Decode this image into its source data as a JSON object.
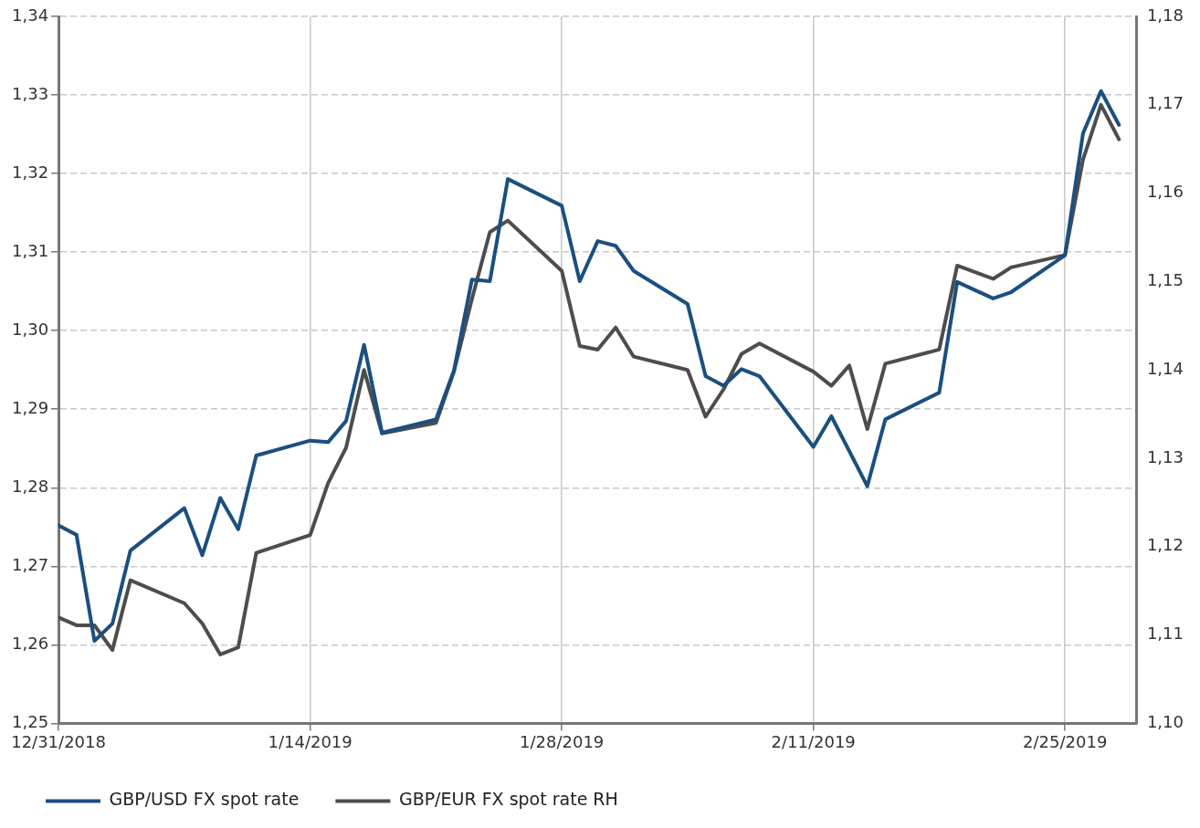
{
  "chart_data": {
    "type": "line",
    "xlim": [
      "2018-12-31",
      "2019-03-01"
    ],
    "xticks": [
      {
        "value": "2018-12-31",
        "label": "12/31/2018"
      },
      {
        "value": "2019-01-14",
        "label": "1/14/2019"
      },
      {
        "value": "2019-01-28",
        "label": "1/28/2019"
      },
      {
        "value": "2019-02-11",
        "label": "2/11/2019"
      },
      {
        "value": "2019-02-25",
        "label": "2/25/2019"
      }
    ],
    "ylim": [
      1.25,
      1.34
    ],
    "yticks": [
      {
        "value": 1.25,
        "label": "1,25"
      },
      {
        "value": 1.26,
        "label": "1,26"
      },
      {
        "value": 1.27,
        "label": "1,27"
      },
      {
        "value": 1.28,
        "label": "1,28"
      },
      {
        "value": 1.29,
        "label": "1,29"
      },
      {
        "value": 1.3,
        "label": "1,30"
      },
      {
        "value": 1.31,
        "label": "1,31"
      },
      {
        "value": 1.32,
        "label": "1,32"
      },
      {
        "value": 1.33,
        "label": "1,33"
      },
      {
        "value": 1.34,
        "label": "1,34"
      }
    ],
    "y2lim": [
      1.1,
      1.18
    ],
    "y2ticks": [
      {
        "value": 1.1,
        "label": "1,10"
      },
      {
        "value": 1.11,
        "label": "1,11"
      },
      {
        "value": 1.12,
        "label": "1,12"
      },
      {
        "value": 1.13,
        "label": "1,13"
      },
      {
        "value": 1.14,
        "label": "1,14"
      },
      {
        "value": 1.15,
        "label": "1,15"
      },
      {
        "value": 1.16,
        "label": "1,16"
      },
      {
        "value": 1.17,
        "label": "1,17"
      },
      {
        "value": 1.18,
        "label": "1,18"
      }
    ],
    "grid": true,
    "legend": "bottom",
    "marker": "none",
    "line_style": "solid",
    "series": [
      {
        "name": "GBP/USD FX spot rate",
        "color": "#1b4f80",
        "x": [
          "2018-12-31",
          "2019-01-01",
          "2019-01-02",
          "2019-01-03",
          "2019-01-04",
          "2019-01-07",
          "2019-01-08",
          "2019-01-09",
          "2019-01-10",
          "2019-01-11",
          "2019-01-14",
          "2019-01-15",
          "2019-01-16",
          "2019-01-17",
          "2019-01-18",
          "2019-01-21",
          "2019-01-22",
          "2019-01-23",
          "2019-01-24",
          "2019-01-25",
          "2019-01-28",
          "2019-01-29",
          "2019-01-30",
          "2019-01-31",
          "2019-02-01",
          "2019-02-04",
          "2019-02-05",
          "2019-02-06",
          "2019-02-07",
          "2019-02-08",
          "2019-02-11",
          "2019-02-12",
          "2019-02-14",
          "2019-02-15",
          "2019-02-18",
          "2019-02-19",
          "2019-02-21",
          "2019-02-22",
          "2019-02-25",
          "2019-02-26",
          "2019-02-27",
          "2019-02-28"
        ],
        "values": [
          1.2752,
          1.274,
          1.2605,
          1.2627,
          1.272,
          1.2774,
          1.2714,
          1.2787,
          1.2747,
          1.2841,
          1.286,
          1.2858,
          1.2885,
          1.2982,
          1.287,
          1.2887,
          1.2949,
          1.3065,
          1.3063,
          1.3193,
          1.3159,
          1.3063,
          1.3114,
          1.3108,
          1.3076,
          1.3034,
          1.2942,
          1.293,
          1.2951,
          1.2942,
          1.2852,
          1.2891,
          1.2802,
          1.2887,
          1.2921,
          1.3062,
          1.3041,
          1.3049,
          1.3096,
          1.3251,
          1.3305,
          1.3262
        ]
      },
      {
        "name": "GBP/EUR FX spot rate RH",
        "color": "#4d4d4d",
        "axis": "y2",
        "x": [
          "2018-12-31",
          "2019-01-01",
          "2019-01-02",
          "2019-01-03",
          "2019-01-04",
          "2019-01-07",
          "2019-01-08",
          "2019-01-09",
          "2019-01-10",
          "2019-01-11",
          "2019-01-14",
          "2019-01-15",
          "2019-01-16",
          "2019-01-17",
          "2019-01-18",
          "2019-01-21",
          "2019-01-22",
          "2019-01-23",
          "2019-01-24",
          "2019-01-25",
          "2019-01-28",
          "2019-01-29",
          "2019-01-30",
          "2019-01-31",
          "2019-02-01",
          "2019-02-04",
          "2019-02-05",
          "2019-02-06",
          "2019-02-07",
          "2019-02-08",
          "2019-02-11",
          "2019-02-12",
          "2019-02-13",
          "2019-02-14",
          "2019-02-15",
          "2019-02-18",
          "2019-02-19",
          "2019-02-21",
          "2019-02-22",
          "2019-02-25",
          "2019-02-26",
          "2019-02-27",
          "2019-02-28"
        ],
        "values": [
          1.112,
          1.1111,
          1.1111,
          1.1083,
          1.1162,
          1.1136,
          1.1113,
          1.1078,
          1.1086,
          1.1193,
          1.1213,
          1.1272,
          1.1312,
          1.14,
          1.1328,
          1.134,
          1.1398,
          1.148,
          1.1556,
          1.1569,
          1.1512,
          1.1427,
          1.1423,
          1.1448,
          1.1415,
          1.14,
          1.1347,
          1.1378,
          1.1418,
          1.143,
          1.1398,
          1.1382,
          1.1405,
          1.1333,
          1.1407,
          1.1423,
          1.1518,
          1.1503,
          1.1516,
          1.153,
          1.1638,
          1.17,
          1.1661
        ]
      }
    ]
  }
}
